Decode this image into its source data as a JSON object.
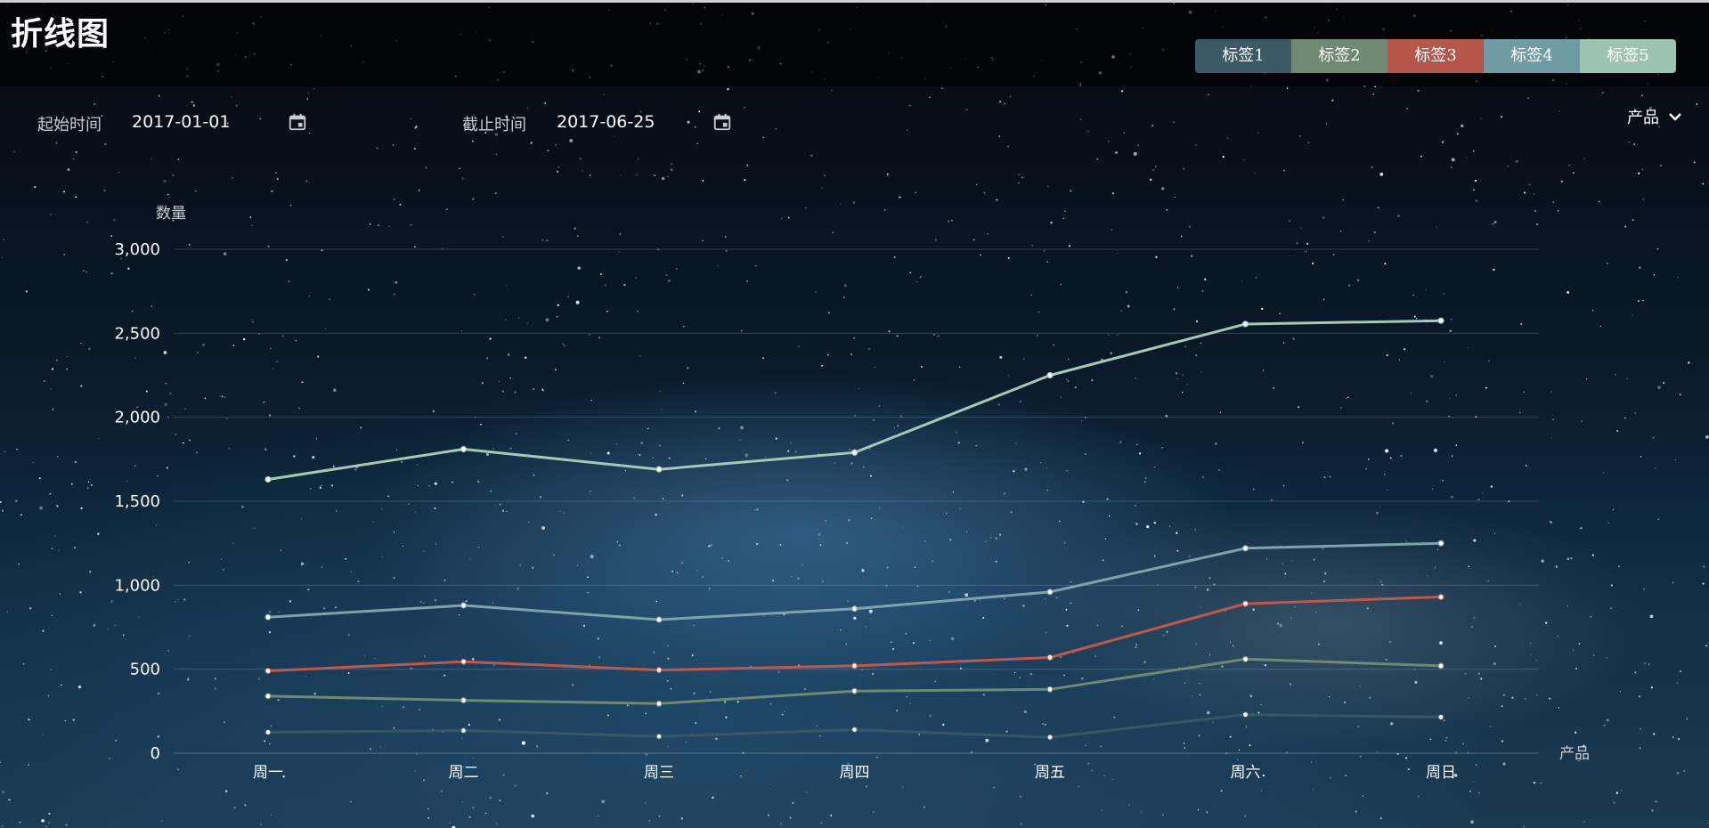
{
  "header": {
    "title": "折线图"
  },
  "tabs": [
    {
      "label": "标签1",
      "color": "#3c5a66"
    },
    {
      "label": "标签2",
      "color": "#6f8a73"
    },
    {
      "label": "标签3",
      "color": "#b4574a"
    },
    {
      "label": "标签4",
      "color": "#6f9ba5"
    },
    {
      "label": "标签5",
      "color": "#9cc4ae"
    }
  ],
  "filters": {
    "start_label": "起始时间",
    "start_value": "2017-01-01",
    "end_label": "截止时间",
    "end_value": "2017-06-25",
    "calendar_icon": "calendar-icon",
    "product_label": "产品",
    "product_icon": "chevron-down-icon"
  },
  "chart_data": {
    "type": "line",
    "title": "",
    "xlabel": "产品",
    "ylabel": "数量",
    "ylim": [
      0,
      3000
    ],
    "yticks": [
      0,
      500,
      1000,
      1500,
      2000,
      2500,
      3000
    ],
    "ytick_labels": [
      "0",
      "500",
      "1,000",
      "1,500",
      "2,000",
      "2,500",
      "3,000"
    ],
    "categories": [
      "周一",
      "周二",
      "周三",
      "周四",
      "周五",
      "周六",
      "周日"
    ],
    "grid": true,
    "series": [
      {
        "name": "标签1",
        "color": "#3c5a66",
        "values": [
          125,
          135,
          100,
          140,
          95,
          230,
          215
        ]
      },
      {
        "name": "标签2",
        "color": "#6f8a73",
        "values": [
          340,
          315,
          295,
          370,
          380,
          560,
          520
        ]
      },
      {
        "name": "标签3",
        "color": "#c0584a",
        "values": [
          490,
          545,
          495,
          520,
          570,
          890,
          930
        ]
      },
      {
        "name": "标签4",
        "color": "#7ea3ab",
        "values": [
          810,
          880,
          795,
          860,
          960,
          1220,
          1250
        ]
      },
      {
        "name": "标签5",
        "color": "#a6c9b3",
        "values": [
          1630,
          1810,
          1690,
          1790,
          2250,
          2555,
          2575
        ]
      }
    ]
  }
}
